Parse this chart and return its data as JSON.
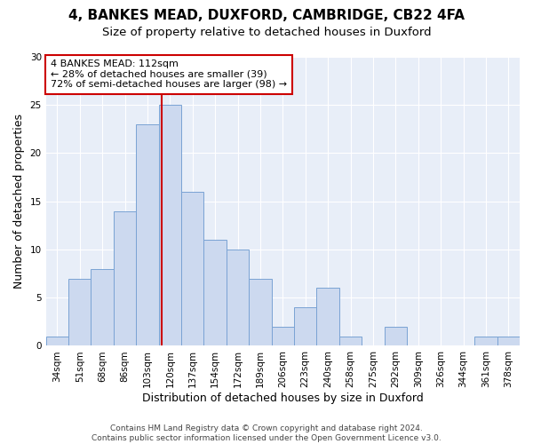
{
  "title1": "4, BANKES MEAD, DUXFORD, CAMBRIDGE, CB22 4FA",
  "title2": "Size of property relative to detached houses in Duxford",
  "xlabel": "Distribution of detached houses by size in Duxford",
  "ylabel": "Number of detached properties",
  "bar_labels": [
    "34sqm",
    "51sqm",
    "68sqm",
    "86sqm",
    "103sqm",
    "120sqm",
    "137sqm",
    "154sqm",
    "172sqm",
    "189sqm",
    "206sqm",
    "223sqm",
    "240sqm",
    "258sqm",
    "275sqm",
    "292sqm",
    "309sqm",
    "326sqm",
    "344sqm",
    "361sqm",
    "378sqm"
  ],
  "bar_values": [
    1,
    7,
    8,
    14,
    23,
    25,
    16,
    11,
    10,
    7,
    2,
    4,
    6,
    1,
    0,
    2,
    0,
    0,
    0,
    1,
    1
  ],
  "bar_color": "#ccd9ef",
  "bar_edge_color": "#7aa3d4",
  "vline_x": 4.65,
  "vline_color": "#cc0000",
  "annotation_line1": "4 BANKES MEAD: 112sqm",
  "annotation_line2": "← 28% of detached houses are smaller (39)",
  "annotation_line3": "72% of semi-detached houses are larger (98) →",
  "annotation_box_facecolor": "#ffffff",
  "annotation_box_edgecolor": "#cc0000",
  "ylim": [
    0,
    30
  ],
  "yticks": [
    0,
    5,
    10,
    15,
    20,
    25,
    30
  ],
  "bg_color": "#e8eef8",
  "grid_color": "#ffffff",
  "footer1": "Contains HM Land Registry data © Crown copyright and database right 2024.",
  "footer2": "Contains public sector information licensed under the Open Government Licence v3.0.",
  "title1_fontsize": 11,
  "title2_fontsize": 9.5,
  "xlabel_fontsize": 9,
  "ylabel_fontsize": 9,
  "tick_fontsize": 7.5,
  "annotation_fontsize": 8,
  "footer_fontsize": 6.5
}
